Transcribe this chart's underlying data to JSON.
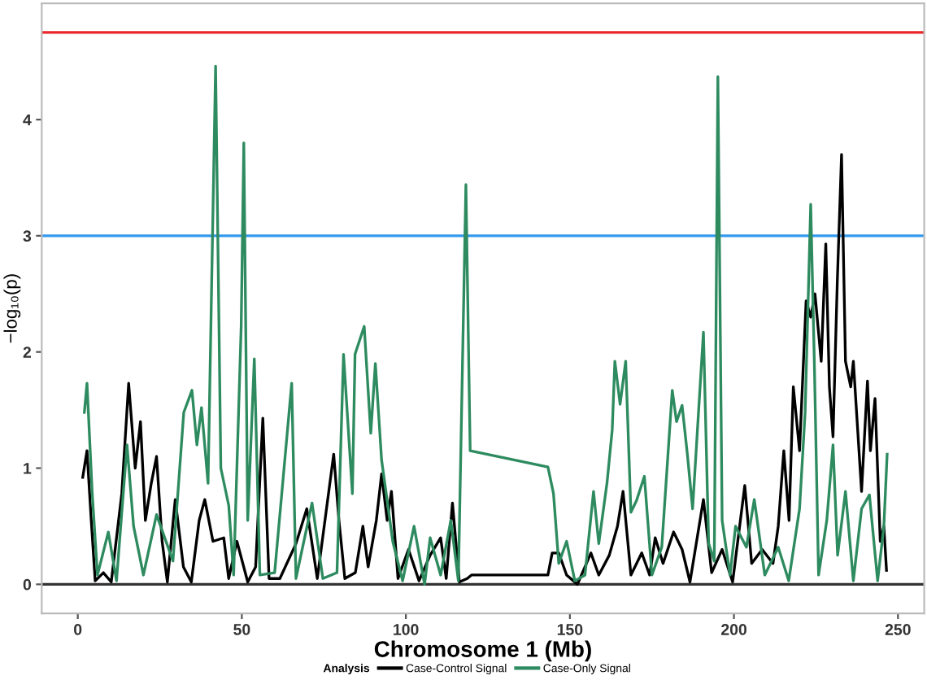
{
  "chart_data": {
    "type": "line",
    "xlabel": "Chromosome 1 (Mb)",
    "ylabel": "−log₁₀(p)",
    "legend_title": "Analysis",
    "legend": "bottom",
    "xlim": [
      -11,
      258
    ],
    "ylim": [
      -0.25,
      5.0
    ],
    "xticks": [
      0,
      50,
      100,
      150,
      200,
      250
    ],
    "yticks": [
      0,
      1,
      2,
      3,
      4
    ],
    "grid": false,
    "line_style": "solid",
    "marker": "none",
    "ref_lines": [
      {
        "axis": "y",
        "value": 0,
        "color": "#333333"
      },
      {
        "axis": "y",
        "value": 3,
        "color": "#3399ee"
      },
      {
        "axis": "y",
        "value": 4.75,
        "color": "#e8262b"
      }
    ],
    "series": [
      {
        "name": "Case-Control Signal",
        "color": "#000000",
        "x": [
          1.5,
          2.8,
          4.1,
          5.3,
          7.8,
          10.2,
          13.4,
          15.5,
          17.5,
          19.1,
          20.6,
          22.4,
          24,
          25.7,
          27.3,
          29.7,
          32.2,
          34.6,
          37,
          38.7,
          41.2,
          44.5,
          46,
          48.5,
          51.8,
          54.2,
          56.4,
          58.3,
          61.6,
          66.5,
          69.8,
          73,
          78,
          79.6,
          81.4,
          84.6,
          86.9,
          88.5,
          91,
          92.6,
          94.3,
          95.6,
          97.6,
          100.8,
          104,
          107.4,
          110.6,
          112.3,
          114.2,
          116.3,
          118.7,
          120,
          143.3,
          144.6,
          146.6,
          149,
          152.3,
          156.4,
          158.8,
          162,
          164.5,
          166.2,
          168.6,
          171.9,
          174.3,
          176,
          178.4,
          181.6,
          184.2,
          186.6,
          190.7,
          193.2,
          196.4,
          199.6,
          203.3,
          205.4,
          208.6,
          211.9,
          213.5,
          215.2,
          216.8,
          218.1,
          220,
          222,
          223.4,
          224.7,
          226.6,
          228,
          229.1,
          230.2,
          231.5,
          232.8,
          234,
          235.6,
          236.4,
          238.9,
          240.7,
          241.6,
          243,
          244.6,
          245.7,
          246.5
        ],
        "values": [
          0.92,
          1.15,
          0.55,
          0.03,
          0.1,
          0.02,
          0.78,
          1.73,
          1.0,
          1.4,
          0.55,
          0.87,
          1.1,
          0.37,
          0.02,
          0.73,
          0.15,
          0.02,
          0.55,
          0.73,
          0.37,
          0.4,
          0.05,
          0.37,
          0.02,
          0.15,
          1.43,
          0.05,
          0.05,
          0.35,
          0.65,
          0.05,
          1.12,
          0.55,
          0.05,
          0.1,
          0.5,
          0.15,
          0.55,
          0.95,
          0.55,
          0.8,
          0.05,
          0.3,
          0.03,
          0.25,
          0.4,
          0.05,
          0.7,
          0.02,
          0.05,
          0.08,
          0.08,
          0.27,
          0.27,
          0.08,
          0.0,
          0.27,
          0.08,
          0.25,
          0.5,
          0.8,
          0.08,
          0.27,
          0.08,
          0.4,
          0.18,
          0.45,
          0.3,
          0.02,
          0.73,
          0.1,
          0.3,
          0.02,
          0.85,
          0.18,
          0.3,
          0.18,
          0.5,
          1.15,
          0.55,
          1.7,
          1.15,
          2.44,
          2.3,
          2.5,
          1.92,
          2.93,
          1.7,
          1.27,
          2.6,
          3.7,
          1.92,
          1.7,
          1.92,
          0.8,
          1.75,
          1.15,
          1.6,
          0.37,
          0.5,
          0.12
        ]
      },
      {
        "name": "Case-Only Signal",
        "color": "#2e8b60",
        "x": [
          2,
          2.8,
          4.4,
          6,
          9.3,
          11.8,
          15,
          17,
          20,
          24,
          29,
          32.3,
          34.8,
          36.3,
          37.7,
          39.7,
          42,
          43.6,
          46,
          47.5,
          49.8,
          50.6,
          51.8,
          53.8,
          55.5,
          60,
          65.2,
          66.5,
          71.4,
          74.7,
          79,
          81,
          83.7,
          84.5,
          87.3,
          89.3,
          90.7,
          92.6,
          96,
          99,
          102.5,
          105.7,
          107.4,
          110.6,
          113.7,
          116,
          118.3,
          119.6,
          143.3,
          145,
          146.6,
          149,
          151.5,
          154.6,
          157.2,
          158.8,
          161.3,
          162.9,
          163.7,
          165.3,
          167,
          168.6,
          170.3,
          172.7,
          175,
          178,
          181.2,
          182.5,
          184.2,
          185.8,
          187.4,
          190.7,
          192.3,
          194,
          195.1,
          196.4,
          198.8,
          200.5,
          203.8,
          206.2,
          209.4,
          213.5,
          216.7,
          220,
          221.7,
          223.4,
          224.5,
          225.8,
          228.3,
          230.2,
          231.6,
          234,
          236.4,
          238.9,
          241.3,
          243.8,
          245.7,
          246.7
        ],
        "values": [
          1.48,
          1.73,
          0.78,
          0.08,
          0.45,
          0.03,
          1.2,
          0.5,
          0.08,
          0.6,
          0.2,
          1.48,
          1.67,
          1.2,
          1.52,
          0.87,
          4.46,
          1.0,
          0.68,
          0.08,
          2.22,
          3.8,
          0.55,
          1.94,
          0.08,
          0.1,
          1.73,
          0.05,
          0.7,
          0.05,
          0.1,
          1.98,
          0.78,
          1.98,
          2.22,
          1.3,
          1.9,
          1.07,
          0.37,
          0.03,
          0.5,
          0.0,
          0.4,
          0.08,
          0.55,
          0.03,
          3.44,
          1.15,
          1.01,
          0.78,
          0.18,
          0.37,
          0.03,
          0.08,
          0.8,
          0.35,
          0.87,
          1.33,
          1.92,
          1.55,
          1.92,
          0.62,
          0.72,
          0.93,
          0.08,
          0.32,
          1.67,
          1.4,
          1.54,
          1.12,
          0.65,
          2.17,
          0.35,
          0.2,
          4.37,
          0.55,
          0.08,
          0.5,
          0.32,
          0.73,
          0.08,
          0.32,
          0.03,
          0.65,
          1.48,
          3.27,
          1.92,
          0.08,
          0.55,
          1.2,
          0.25,
          0.8,
          0.03,
          0.65,
          0.77,
          0.03,
          0.5,
          1.12
        ]
      }
    ]
  }
}
